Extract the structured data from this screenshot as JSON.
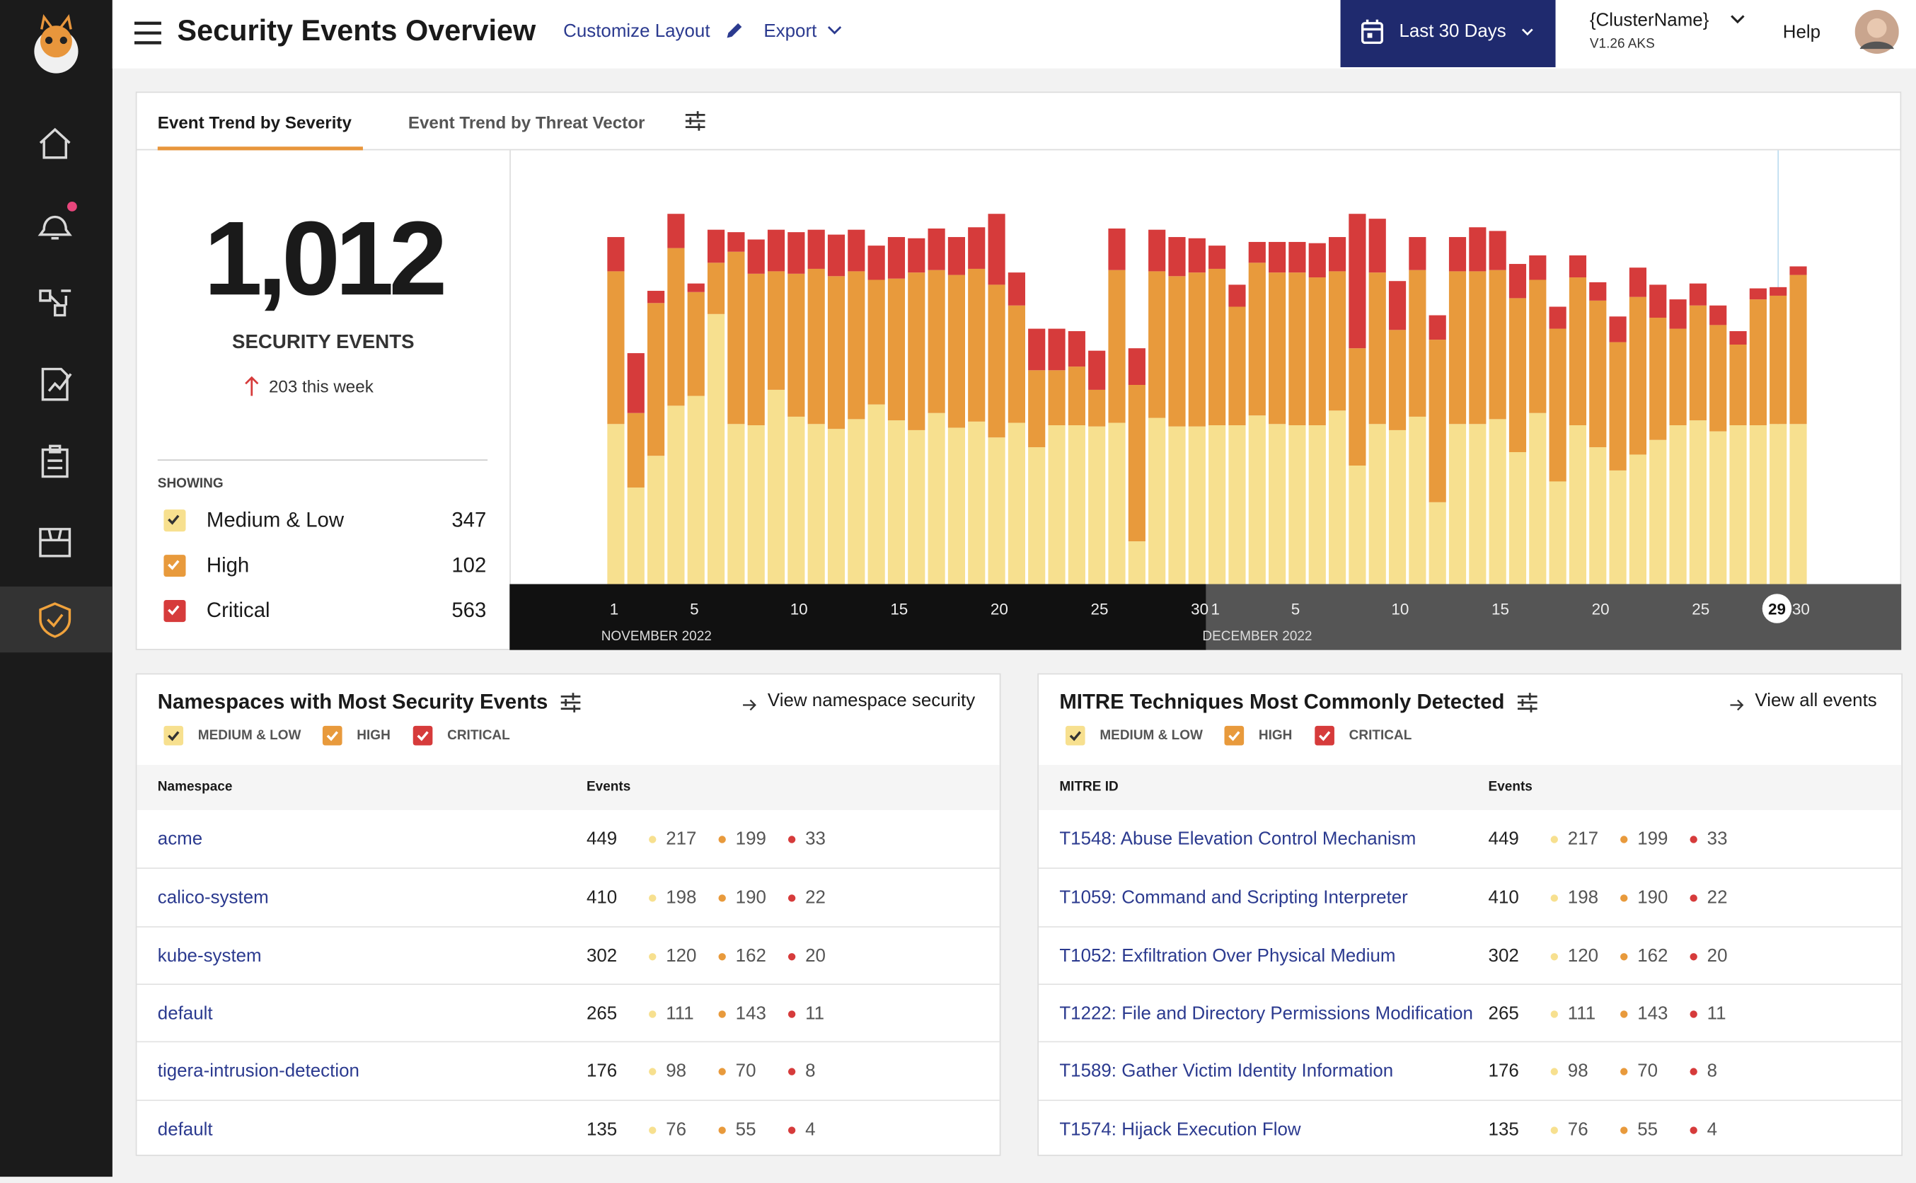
{
  "header": {
    "title": "Security Events Overview",
    "customize": "Customize Layout",
    "export": "Export",
    "date_range": "Last 30 Days",
    "cluster": "{ClusterName}",
    "version": "V1.26 AKS",
    "help": "Help"
  },
  "tabs": [
    "Event Trend by Severity",
    "Event Trend by Threat Vector"
  ],
  "summary": {
    "total": "1,012",
    "label": "SECURITY EVENTS",
    "delta": "203 this week",
    "showing": "SHOWING",
    "items": [
      {
        "name": "Medium & Low",
        "count": 347
      },
      {
        "name": "High",
        "count": 102
      },
      {
        "name": "Critical",
        "count": 563
      }
    ]
  },
  "chart_data": {
    "type": "bar",
    "stacked": true,
    "categories": [
      "1",
      null,
      null,
      null,
      "5",
      null,
      null,
      null,
      null,
      "10",
      null,
      null,
      null,
      null,
      "15",
      null,
      null,
      null,
      null,
      "20",
      null,
      null,
      null,
      null,
      "25",
      null,
      null,
      null,
      null,
      "30",
      "1",
      null,
      null,
      null,
      "5",
      null,
      null,
      null,
      null,
      "10",
      null,
      null,
      null,
      null,
      "15",
      null,
      null,
      null,
      null,
      "20",
      null,
      null,
      null,
      null,
      "25",
      null,
      null,
      null,
      "29",
      "30"
    ],
    "month_labels": [
      "NOVEMBER 2022",
      "DECEMBER 2022"
    ],
    "series": [
      {
        "name": "Medium & Low",
        "color": "#f7e08f",
        "values": [
          131,
          79,
          105,
          146,
          154,
          221,
          131,
          130,
          159,
          137,
          131,
          127,
          135,
          147,
          134,
          126,
          140,
          128,
          133,
          120,
          132,
          112,
          130,
          130,
          129,
          132,
          35,
          136,
          129,
          129,
          130,
          130,
          138,
          131,
          130,
          130,
          142,
          97,
          131,
          126,
          137,
          67,
          131,
          131,
          135,
          108,
          140,
          84,
          130,
          112,
          93,
          106,
          118,
          130,
          134,
          125,
          130,
          130,
          131,
          131
        ]
      },
      {
        "name": "High",
        "color": "#e89a3c",
        "values": [
          125,
          61,
          125,
          129,
          85,
          42,
          141,
          124,
          97,
          117,
          127,
          125,
          121,
          102,
          116,
          129,
          117,
          125,
          125,
          125,
          96,
          63,
          45,
          48,
          30,
          125,
          128,
          120,
          123,
          126,
          128,
          97,
          125,
          124,
          125,
          121,
          114,
          96,
          124,
          82,
          120,
          133,
          125,
          125,
          122,
          126,
          109,
          125,
          121,
          120,
          105,
          129,
          100,
          79,
          94,
          87,
          66,
          103,
          105,
          122
        ]
      },
      {
        "name": "Critical",
        "color": "#d63b3b",
        "values": [
          28,
          49,
          10,
          28,
          7,
          27,
          16,
          28,
          34,
          34,
          32,
          34,
          34,
          28,
          34,
          28,
          34,
          31,
          34,
          58,
          27,
          34,
          34,
          29,
          32,
          34,
          30,
          34,
          32,
          28,
          19,
          18,
          17,
          25,
          25,
          28,
          28,
          110,
          44,
          40,
          27,
          20,
          28,
          36,
          32,
          28,
          20,
          18,
          18,
          15,
          21,
          24,
          27,
          24,
          18,
          16,
          11,
          9,
          7,
          7
        ]
      }
    ],
    "ylim": [
      0,
      355
    ]
  },
  "namespaces": {
    "title": "Namespaces with Most Security Events",
    "link": "View namespace security",
    "legend": [
      "MEDIUM & LOW",
      "HIGH",
      "CRITICAL"
    ],
    "columns": [
      "Namespace",
      "Events"
    ],
    "rows": [
      {
        "name": "acme",
        "events": 449,
        "medium": 217,
        "high": 199,
        "critical": 33
      },
      {
        "name": "calico-system",
        "events": 410,
        "medium": 198,
        "high": 190,
        "critical": 22
      },
      {
        "name": "kube-system",
        "events": 302,
        "medium": 120,
        "high": 162,
        "critical": 20
      },
      {
        "name": "default",
        "events": 265,
        "medium": 111,
        "high": 143,
        "critical": 11
      },
      {
        "name": "tigera-intrusion-detection",
        "events": 176,
        "medium": 98,
        "high": 70,
        "critical": 8
      },
      {
        "name": "default",
        "events": 135,
        "medium": 76,
        "high": 55,
        "critical": 4
      }
    ]
  },
  "mitre": {
    "title": "MITRE Techniques Most Commonly Detected",
    "link": "View all events",
    "legend": [
      "MEDIUM & LOW",
      "HIGH",
      "CRITICAL"
    ],
    "columns": [
      "MITRE ID",
      "Events"
    ],
    "rows": [
      {
        "name": "T1548: Abuse Elevation Control Mechanism",
        "events": 449,
        "medium": 217,
        "high": 199,
        "critical": 33
      },
      {
        "name": "T1059: Command and Scripting Interpreter",
        "events": 410,
        "medium": 198,
        "high": 190,
        "critical": 22
      },
      {
        "name": "T1052: Exfiltration Over Physical Medium",
        "events": 302,
        "medium": 120,
        "high": 162,
        "critical": 20
      },
      {
        "name": "T1222: File and Directory Permissions Modification",
        "events": 265,
        "medium": 111,
        "high": 143,
        "critical": 11
      },
      {
        "name": "T1589: Gather Victim Identity Information",
        "events": 176,
        "medium": 98,
        "high": 70,
        "critical": 8
      },
      {
        "name": "T1574: Hijack Execution Flow",
        "events": 135,
        "medium": 76,
        "high": 55,
        "critical": 4
      }
    ]
  }
}
